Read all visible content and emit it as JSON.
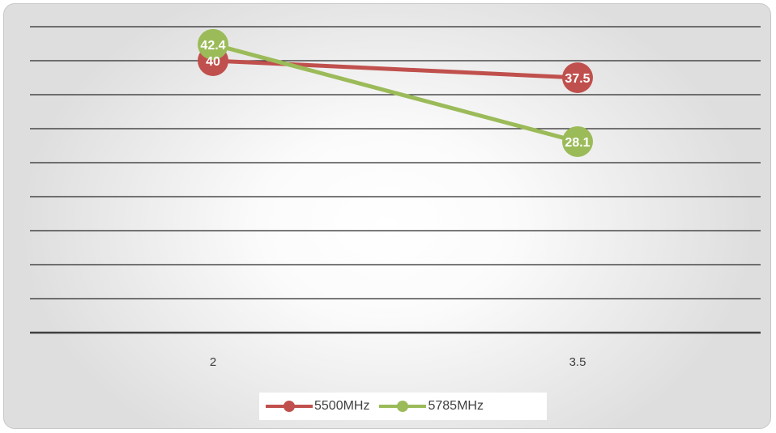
{
  "chart_data": {
    "type": "line",
    "x": [
      "2",
      "3.5"
    ],
    "series": [
      {
        "name": "5500MHz",
        "values": [
          40,
          37.5
        ],
        "color": "#c0504d",
        "labels": [
          "40",
          "37.5"
        ]
      },
      {
        "name": "5785MHz",
        "values": [
          42.4,
          28.1
        ],
        "color": "#9bbb59",
        "labels": [
          "42.4",
          "28.1"
        ]
      }
    ],
    "ylim": [
      0,
      45
    ],
    "y_gridline_step": 5,
    "grid": true,
    "legend_position": "bottom",
    "title": "",
    "xlabel": "",
    "ylabel": ""
  }
}
